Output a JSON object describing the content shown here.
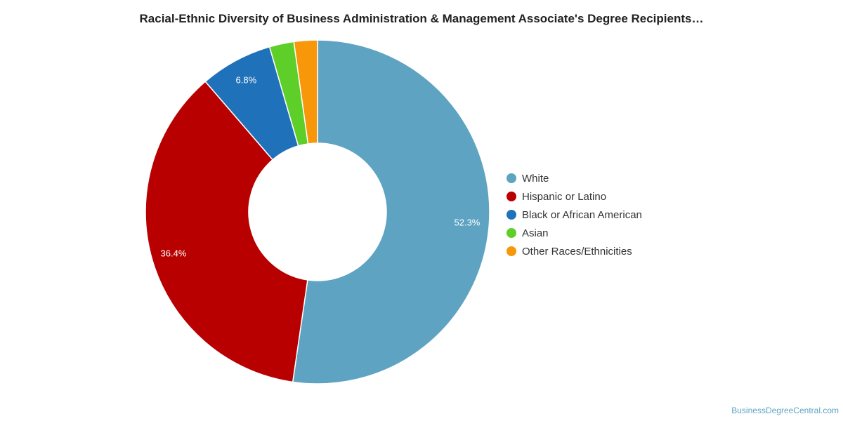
{
  "chart_data": {
    "type": "pie",
    "variant": "donut",
    "title": "Racial-Ethnic Diversity of Business Administration & Management Associate's Degree Recipients…",
    "categories": [
      "White",
      "Hispanic or Latino",
      "Black or African American",
      "Asian",
      "Other Races/Ethnicities"
    ],
    "values": [
      52.3,
      36.4,
      6.8,
      2.3,
      2.2
    ],
    "value_labels": [
      "52.3%",
      "36.4%",
      "6.8%",
      "",
      ""
    ],
    "colors": [
      "#5ea3c2",
      "#b80000",
      "#1f72ba",
      "#5ece29",
      "#f79709"
    ],
    "legend_position": "right"
  },
  "watermark": "BusinessDegreeCentral.com"
}
